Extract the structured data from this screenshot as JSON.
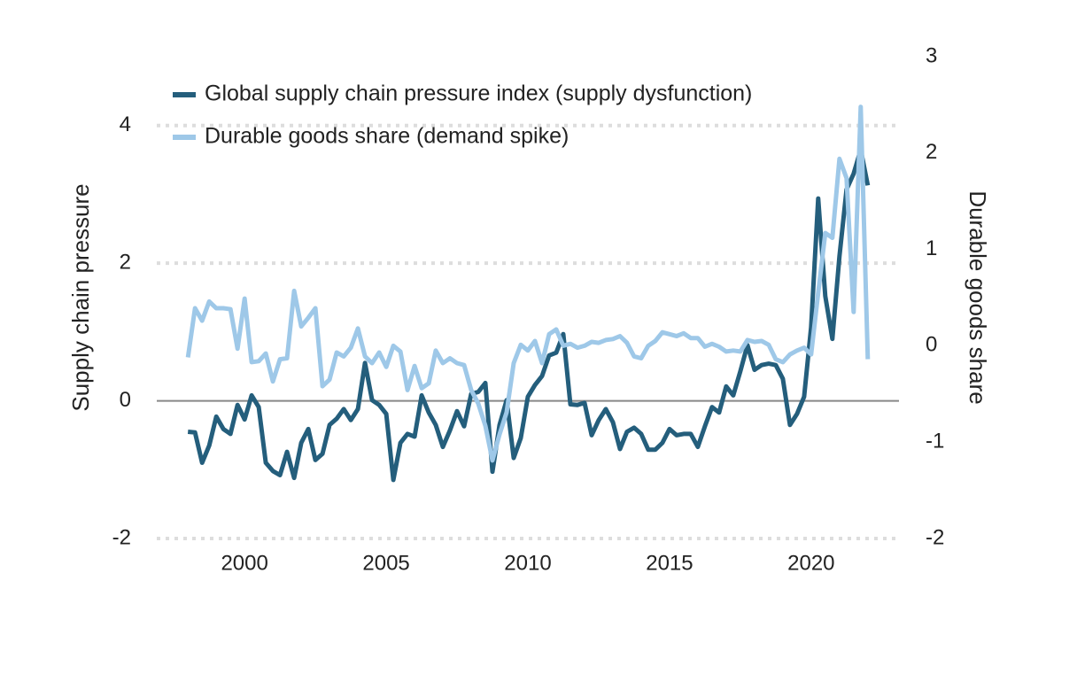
{
  "chart_data": {
    "type": "line",
    "ylabel": "Supply chain pressure",
    "y2label": "Durable goods share",
    "x": [
      1998,
      1998.25,
      1998.5,
      1998.75,
      1999,
      1999.25,
      1999.5,
      1999.75,
      2000,
      2000.25,
      2000.5,
      2000.75,
      2001,
      2001.25,
      2001.5,
      2001.75,
      2002,
      2002.25,
      2002.5,
      2002.75,
      2003,
      2003.25,
      2003.5,
      2003.75,
      2004,
      2004.25,
      2004.5,
      2004.75,
      2005,
      2005.25,
      2005.5,
      2005.75,
      2006,
      2006.25,
      2006.5,
      2006.75,
      2007,
      2007.25,
      2007.5,
      2007.75,
      2008,
      2008.25,
      2008.5,
      2008.75,
      2009,
      2009.25,
      2009.5,
      2009.75,
      2010,
      2010.25,
      2010.5,
      2010.75,
      2011,
      2011.25,
      2011.5,
      2011.75,
      2012,
      2012.25,
      2012.5,
      2012.75,
      2013,
      2013.25,
      2013.5,
      2013.75,
      2014,
      2014.25,
      2014.5,
      2014.75,
      2015,
      2015.25,
      2015.5,
      2015.75,
      2016,
      2016.25,
      2016.5,
      2016.75,
      2017,
      2017.25,
      2017.5,
      2017.75,
      2018,
      2018.25,
      2018.5,
      2018.75,
      2019,
      2019.25,
      2019.5,
      2019.75,
      2020,
      2020.25,
      2020.5,
      2020.75,
      2021,
      2021.25,
      2021.5,
      2021.75,
      2022
    ],
    "series": [
      {
        "name": "Global supply chain pressure index (supply dysfunction)",
        "color": "#245e7c",
        "axis": "y",
        "values": [
          -0.45,
          -0.46,
          -0.9,
          -0.65,
          -0.23,
          -0.41,
          -0.48,
          -0.06,
          -0.27,
          0.08,
          -0.09,
          -0.9,
          -1.02,
          -1.08,
          -0.74,
          -1.12,
          -0.61,
          -0.41,
          -0.86,
          -0.77,
          -0.35,
          -0.26,
          -0.12,
          -0.28,
          -0.12,
          0.55,
          0.01,
          -0.06,
          -0.19,
          -1.15,
          -0.61,
          -0.48,
          -0.52,
          0.08,
          -0.17,
          -0.35,
          -0.67,
          -0.43,
          -0.15,
          -0.37,
          0.1,
          0.13,
          0.26,
          -1.03,
          -0.35,
          0.01,
          -0.83,
          -0.54,
          0.06,
          0.23,
          0.36,
          0.66,
          0.7,
          0.97,
          -0.05,
          -0.06,
          -0.03,
          -0.5,
          -0.28,
          -0.12,
          -0.31,
          -0.7,
          -0.45,
          -0.39,
          -0.48,
          -0.71,
          -0.71,
          -0.61,
          -0.41,
          -0.5,
          -0.48,
          -0.48,
          -0.67,
          -0.37,
          -0.09,
          -0.17,
          0.21,
          0.08,
          0.43,
          0.81,
          0.45,
          0.52,
          0.54,
          0.52,
          0.32,
          -0.35,
          -0.19,
          0.06,
          1.07,
          2.94,
          1.52,
          0.9,
          2.1,
          3.07,
          3.3,
          3.65,
          3.13
        ]
      },
      {
        "name": "Durable goods share (demand spike)",
        "color": "#9ec8e8",
        "axis": "y2",
        "values": [
          -0.12,
          0.39,
          0.26,
          0.46,
          0.39,
          0.39,
          0.38,
          -0.03,
          0.49,
          -0.17,
          -0.16,
          -0.08,
          -0.37,
          -0.14,
          -0.13,
          0.57,
          0.2,
          0.29,
          0.39,
          -0.42,
          -0.35,
          -0.07,
          -0.11,
          -0.02,
          0.18,
          -0.11,
          -0.18,
          -0.07,
          -0.22,
          0,
          -0.06,
          -0.46,
          -0.21,
          -0.44,
          -0.39,
          -0.05,
          -0.18,
          -0.13,
          -0.18,
          -0.2,
          -0.46,
          -0.6,
          -0.83,
          -1.19,
          -0.92,
          -0.69,
          -0.18,
          0.01,
          -0.05,
          0.05,
          -0.18,
          0.12,
          0.17,
          0,
          0.02,
          -0.02,
          0,
          0.04,
          0.03,
          0.06,
          0.07,
          0.1,
          0.03,
          -0.11,
          -0.13,
          0,
          0.05,
          0.14,
          0.12,
          0.1,
          0.13,
          0.08,
          0.08,
          -0.01,
          0.02,
          -0.01,
          -0.06,
          -0.05,
          -0.06,
          0.06,
          0.04,
          0.05,
          0.01,
          -0.14,
          -0.17,
          -0.09,
          -0.05,
          -0.02,
          -0.09,
          0.55,
          1.17,
          1.12,
          1.94,
          1.74,
          0.35,
          2.48,
          -0.14
        ]
      }
    ],
    "xlim": [
      1996.9,
      2023.1
    ],
    "xticks": [
      2000,
      2005,
      2010,
      2015,
      2020
    ],
    "ylim": [
      -2,
      5
    ],
    "yticks": [
      -2,
      0,
      2,
      4
    ],
    "y2lim": [
      -2,
      3
    ],
    "y2ticks": [
      -2,
      -1,
      0,
      1,
      2,
      3
    ],
    "grid": true,
    "legend": "top-left"
  }
}
